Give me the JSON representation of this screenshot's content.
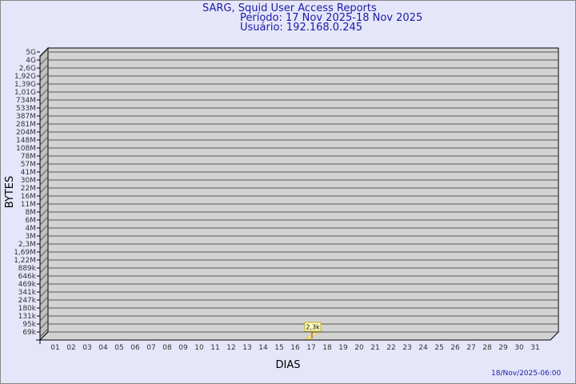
{
  "chart_data": {
    "type": "bar",
    "title": "SARG, Squid User Access Reports",
    "subtitle": [
      "Período: 17 Nov 2025-18 Nov 2025",
      "Usuário: 192.168.0.245"
    ],
    "xlabel": "DIAS",
    "ylabel": "BYTES",
    "y_ticks": [
      "5G",
      "4G",
      "2,6G",
      "1,92G",
      "1,39G",
      "1,01G",
      "734M",
      "533M",
      "387M",
      "281M",
      "204M",
      "148M",
      "108M",
      "78M",
      "57M",
      "41M",
      "30M",
      "22M",
      "16M",
      "11M",
      "8M",
      "6M",
      "4M",
      "3M",
      "2,3M",
      "1,69M",
      "1,22M",
      "889k",
      "646k",
      "469k",
      "341k",
      "247k",
      "180k",
      "131k",
      "95k",
      "69k"
    ],
    "y_scale": "log",
    "categories": [
      "01",
      "02",
      "03",
      "04",
      "05",
      "06",
      "07",
      "08",
      "09",
      "10",
      "11",
      "12",
      "13",
      "14",
      "15",
      "16",
      "17",
      "18",
      "19",
      "20",
      "21",
      "22",
      "23",
      "24",
      "25",
      "26",
      "27",
      "28",
      "29",
      "30",
      "31"
    ],
    "values": [
      null,
      null,
      null,
      null,
      null,
      null,
      null,
      null,
      null,
      null,
      null,
      null,
      null,
      null,
      null,
      null,
      2300,
      null,
      null,
      null,
      null,
      null,
      null,
      null,
      null,
      null,
      null,
      null,
      null,
      null,
      null
    ],
    "data_labels": {
      "17": "2,3k"
    },
    "bar_color": "#ffe08a",
    "grid": true,
    "footer": "18/Nov/2025-06:00"
  }
}
